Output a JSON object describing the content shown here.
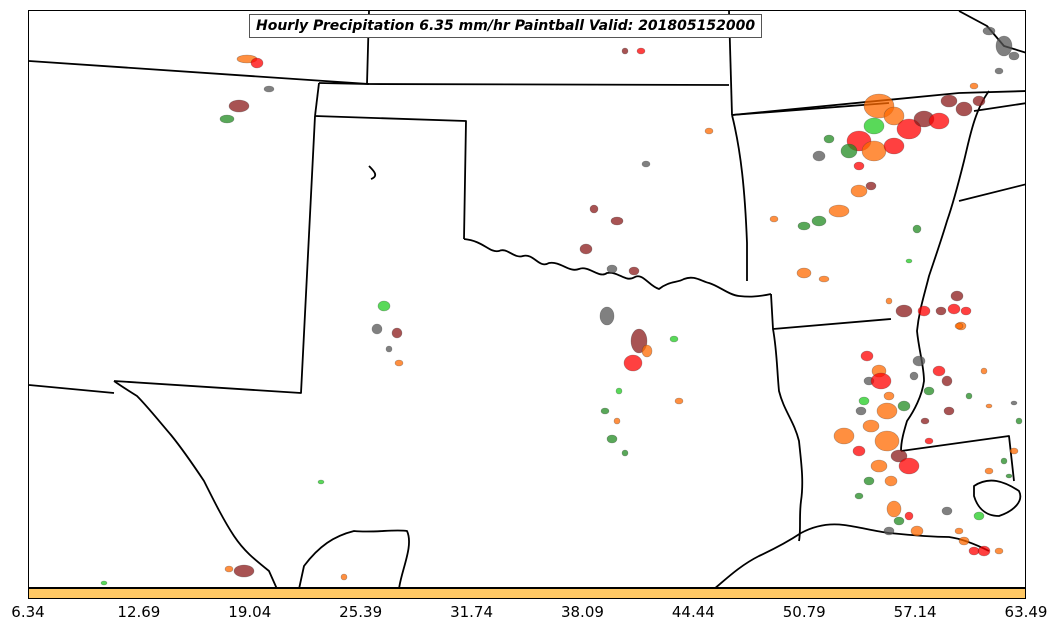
{
  "title": "Hourly Precipitation 6.35 mm/hr Paintball Valid: 201805152000",
  "map": {
    "background": "#ffffff",
    "boundary_color": "#000000",
    "member_colors": [
      "#ff0000",
      "#ff8c00",
      "#22cc22",
      "#228b22",
      "#8b1a1a",
      "#555555",
      "#ff6a00",
      "#6b8e23"
    ]
  },
  "colorbar": {
    "fill": "#ffc864",
    "tick_labels": [
      "6.34",
      "12.69",
      "19.04",
      "25.39",
      "31.74",
      "38.09",
      "44.44",
      "50.79",
      "57.14",
      "63.49"
    ]
  }
}
